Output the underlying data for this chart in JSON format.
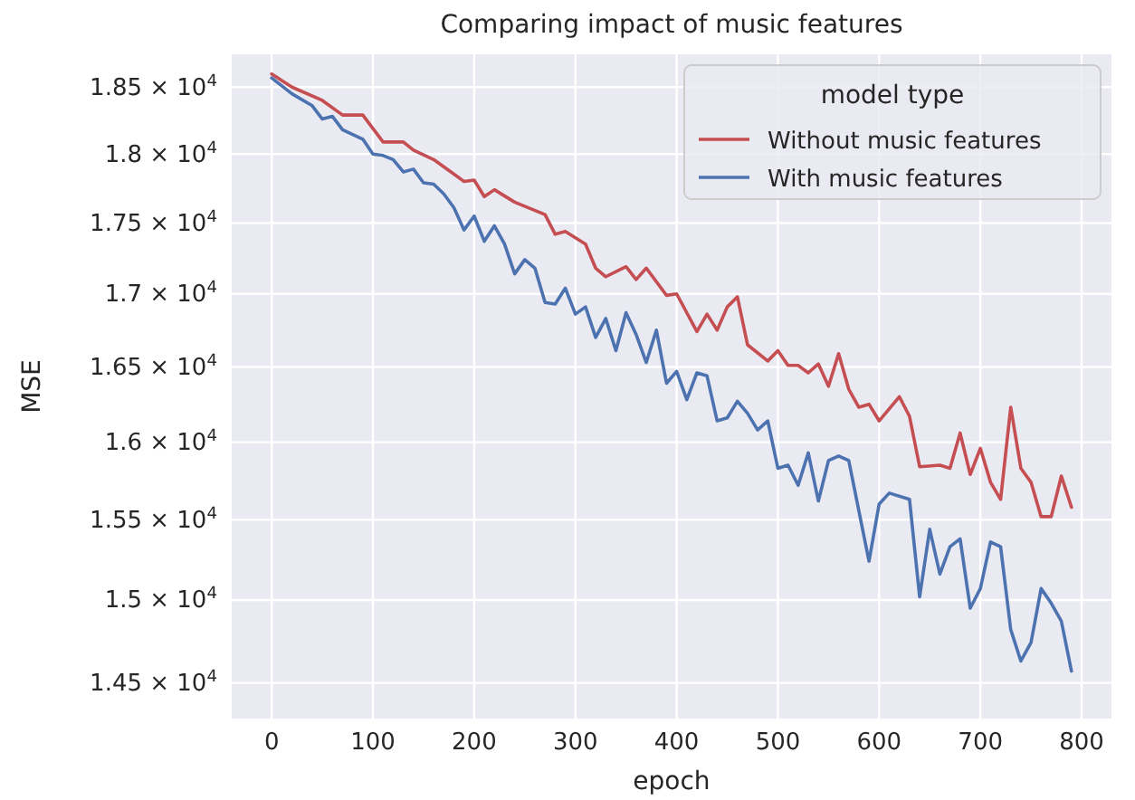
{
  "chart_data": {
    "type": "line",
    "title": "Comparing impact of music features",
    "xlabel": "epoch",
    "ylabel": "MSE",
    "legend_title": "model type",
    "legend": "top right",
    "grid": true,
    "log": "y",
    "marker": "none",
    "line_style": "solid",
    "xlim": [
      -39.5,
      829.5
    ],
    "xticks": [
      0,
      100,
      200,
      300,
      400,
      500,
      600,
      700,
      800
    ],
    "ylim": [
      14290,
      18750
    ],
    "yticks": [
      {
        "value": 14500,
        "label": "1.45 × 10$^{4}$"
      },
      {
        "value": 15000,
        "label": "1.5 × 10$^{4}$"
      },
      {
        "value": 15500,
        "label": "1.55 × 10$^{4}$"
      },
      {
        "value": 16000,
        "label": "1.6 × 10$^{4}$"
      },
      {
        "value": 16500,
        "label": "1.65 × 10$^{4}$"
      },
      {
        "value": 17000,
        "label": "1.7 × 10$^{4}$"
      },
      {
        "value": 17500,
        "label": "1.75 × 10$^{4}$"
      },
      {
        "value": 18000,
        "label": "1.8 × 10$^{4}$"
      },
      {
        "value": 18500,
        "label": "1.85 × 10$^{4}$"
      }
    ],
    "series": [
      {
        "name": "Without music features",
        "color": "#c44e52",
        "x": [
          0,
          20,
          50,
          70,
          90,
          110,
          130,
          140,
          160,
          190,
          200,
          210,
          220,
          240,
          270,
          280,
          290,
          310,
          320,
          330,
          350,
          360,
          370,
          390,
          400,
          420,
          430,
          440,
          450,
          460,
          470,
          490,
          500,
          510,
          520,
          530,
          540,
          550,
          560,
          570,
          580,
          590,
          600,
          620,
          630,
          640,
          660,
          670,
          680,
          690,
          700,
          710,
          720,
          730,
          740,
          750,
          760,
          770,
          780,
          790
        ],
        "values": [
          18600,
          18500,
          18400,
          18290,
          18290,
          18090,
          18090,
          18030,
          17960,
          17800,
          17810,
          17690,
          17740,
          17650,
          17560,
          17420,
          17440,
          17350,
          17180,
          17120,
          17190,
          17100,
          17180,
          16990,
          17000,
          16740,
          16860,
          16750,
          16910,
          16980,
          16650,
          16540,
          16610,
          16510,
          16510,
          16460,
          16520,
          16370,
          16590,
          16350,
          16230,
          16250,
          16140,
          16300,
          16170,
          15840,
          15850,
          15830,
          16060,
          15790,
          15960,
          15740,
          15630,
          16230,
          15830,
          15740,
          15520,
          15520,
          15780,
          15580
        ]
      },
      {
        "name": "With music features",
        "color": "#4c72b0",
        "x": [
          0,
          20,
          40,
          50,
          60,
          70,
          90,
          100,
          110,
          120,
          130,
          140,
          150,
          160,
          170,
          180,
          190,
          200,
          210,
          220,
          230,
          240,
          250,
          260,
          270,
          280,
          290,
          300,
          310,
          320,
          330,
          340,
          350,
          360,
          370,
          380,
          390,
          400,
          410,
          420,
          430,
          440,
          450,
          460,
          470,
          480,
          490,
          500,
          510,
          520,
          530,
          540,
          550,
          560,
          570,
          590,
          600,
          610,
          630,
          640,
          650,
          660,
          670,
          680,
          690,
          700,
          710,
          720,
          730,
          740,
          750,
          760,
          770,
          780,
          790
        ],
        "values": [
          18570,
          18450,
          18360,
          18260,
          18280,
          18180,
          18110,
          18000,
          17990,
          17960,
          17870,
          17890,
          17790,
          17780,
          17710,
          17610,
          17450,
          17550,
          17370,
          17480,
          17350,
          17140,
          17240,
          17180,
          16940,
          16930,
          17040,
          16860,
          16910,
          16700,
          16830,
          16610,
          16870,
          16720,
          16530,
          16750,
          16390,
          16470,
          16280,
          16460,
          16440,
          16140,
          16160,
          16270,
          16190,
          16080,
          16140,
          15830,
          15850,
          15720,
          15930,
          15620,
          15880,
          15910,
          15880,
          15240,
          15600,
          15670,
          15630,
          15020,
          15440,
          15160,
          15330,
          15380,
          14950,
          15070,
          15360,
          15330,
          14820,
          14630,
          14740,
          15070,
          14980,
          14870,
          14570
        ]
      }
    ]
  }
}
